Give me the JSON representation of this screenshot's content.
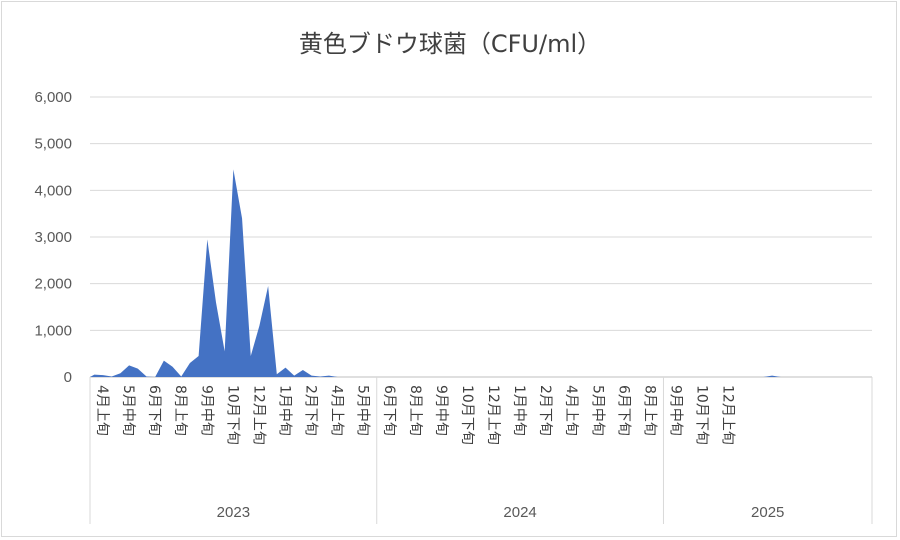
{
  "chart_data": {
    "type": "area",
    "title": "黄色ブドウ球菌（CFU/ml）",
    "xlabel": "",
    "ylabel": "",
    "ylim": [
      0,
      6000
    ],
    "yticks": [
      "0",
      "1,000",
      "2,000",
      "3,000",
      "4,000",
      "5,000",
      "6,000"
    ],
    "grid": true,
    "color": "#4472c4",
    "category_labels": [
      "4月上旬",
      "5月中旬",
      "6月下旬",
      "8月上旬",
      "9月中旬",
      "10月下旬",
      "12月上旬",
      "1月中旬",
      "2月下旬",
      "4月上旬",
      "5月中旬",
      "6月下旬",
      "8月上旬",
      "9月中旬",
      "10月下旬",
      "12月上旬",
      "1月中旬",
      "2月下旬",
      "4月上旬",
      "5月中旬",
      "6月下旬",
      "8月上旬",
      "9月中旬",
      "10月下旬",
      "12月上旬"
    ],
    "years": [
      {
        "label": "2023",
        "start_period": 0,
        "end_period": 33
      },
      {
        "label": "2024",
        "start_period": 33,
        "end_period": 66
      },
      {
        "label": "2025",
        "start_period": 66,
        "end_period": 90
      }
    ],
    "total_periods": 90,
    "values": [
      50,
      40,
      10,
      80,
      250,
      180,
      10,
      0,
      350,
      220,
      10,
      300,
      450,
      2950,
      1600,
      550,
      4450,
      3400,
      450,
      1100,
      1950,
      60,
      200,
      30,
      150,
      30,
      10,
      30,
      0,
      0,
      0,
      0,
      0,
      0,
      0,
      0,
      0,
      0,
      0,
      0,
      0,
      0,
      0,
      0,
      0,
      0,
      0,
      0,
      0,
      0,
      0,
      0,
      0,
      0,
      0,
      0,
      0,
      0,
      0,
      0,
      0,
      0,
      0,
      0,
      0,
      0,
      0,
      0,
      0,
      0,
      0,
      0,
      0,
      0,
      0,
      0,
      0,
      0,
      30,
      0,
      0,
      0,
      0,
      0,
      0,
      0,
      0,
      0,
      0,
      0
    ]
  }
}
